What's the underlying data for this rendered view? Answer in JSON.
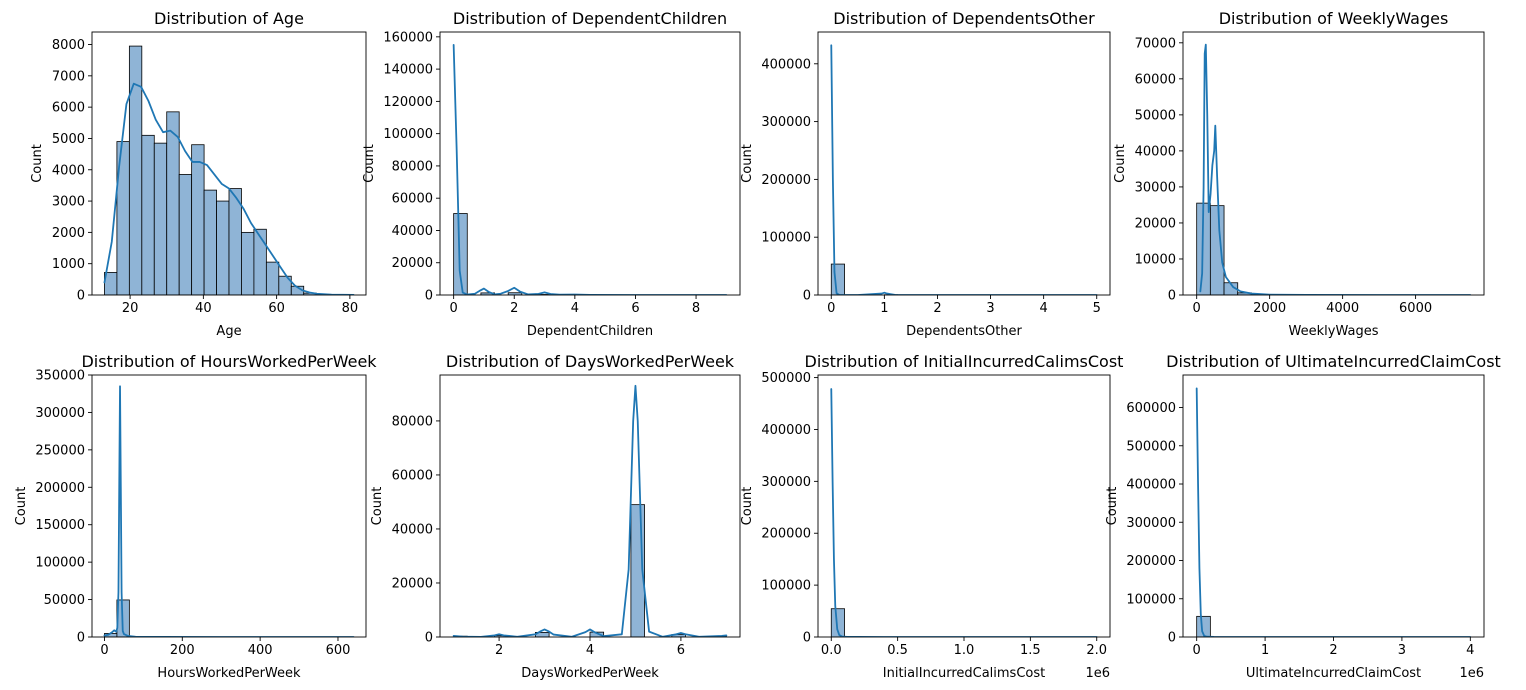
{
  "colors": {
    "bar_fill": "#8fb4d6",
    "bar_edge": "#000000",
    "kde_line": "#1f77b4",
    "axis": "#000000",
    "background": "#ffffff"
  },
  "chart_data": [
    {
      "type": "bar",
      "title": "Distribution of Age",
      "xlabel": "Age",
      "ylabel": "Count",
      "xlim": [
        9.6,
        84.4
      ],
      "ylim": [
        0,
        8400
      ],
      "xticks": [
        20,
        40,
        60,
        80
      ],
      "xtick_labels": [
        "20",
        "40",
        "60",
        "80"
      ],
      "yticks": [
        0,
        1000,
        2000,
        3000,
        4000,
        5000,
        6000,
        7000,
        8000
      ],
      "ytick_labels": [
        "0",
        "1000",
        "2000",
        "3000",
        "4000",
        "5000",
        "6000",
        "7000",
        "8000"
      ],
      "bin_edges": [
        13,
        16.4,
        19.8,
        23.2,
        26.6,
        30,
        33.4,
        36.8,
        40.2,
        43.6,
        47,
        50.4,
        53.8,
        57.2,
        60.6,
        64,
        67.4,
        70.8,
        74.2,
        77.6,
        81
      ],
      "counts": [
        720,
        4900,
        7950,
        5100,
        4850,
        5850,
        3850,
        4800,
        3350,
        3000,
        3400,
        2000,
        2100,
        1050,
        600,
        280,
        60,
        20,
        8,
        4
      ],
      "kde": {
        "x": [
          13,
          15,
          17,
          19,
          21,
          23,
          25,
          27,
          29,
          31,
          33,
          35,
          37,
          39,
          41,
          43,
          45,
          47,
          49,
          51,
          53,
          55,
          57,
          59,
          61,
          63,
          65,
          67,
          69,
          71,
          75,
          81
        ],
        "y": [
          400,
          1700,
          4100,
          6100,
          6750,
          6650,
          6200,
          5600,
          5200,
          5250,
          5050,
          4600,
          4250,
          4250,
          4150,
          3850,
          3550,
          3400,
          3100,
          2750,
          2300,
          1950,
          1600,
          1250,
          900,
          550,
          300,
          150,
          80,
          40,
          10,
          2
        ]
      },
      "x_offset_label": ""
    },
    {
      "type": "bar",
      "title": "Distribution of DependentChildren",
      "xlabel": "DependentChildren",
      "ylabel": "Count",
      "xlim": [
        -0.45,
        9.45
      ],
      "ylim": [
        0,
        163000
      ],
      "xticks": [
        0,
        2,
        4,
        6,
        8
      ],
      "xtick_labels": [
        "0",
        "2",
        "4",
        "6",
        "8"
      ],
      "yticks": [
        0,
        20000,
        40000,
        60000,
        80000,
        100000,
        120000,
        140000,
        160000
      ],
      "ytick_labels": [
        "0",
        "20000",
        "40000",
        "60000",
        "80000",
        "100000",
        "120000",
        "140000",
        "160000"
      ],
      "bin_edges": [
        0,
        0.45,
        0.9,
        1.35,
        1.8,
        2.25,
        2.7,
        3.15,
        3.6,
        4.05,
        4.5,
        4.95,
        5.4,
        5.85,
        6.3,
        6.75,
        7.2,
        7.65,
        8.1,
        8.55,
        9
      ],
      "counts": [
        50500,
        0,
        1300,
        0,
        1400,
        0,
        300,
        0,
        80,
        0,
        20,
        0,
        10,
        0,
        5,
        0,
        3,
        0,
        2,
        2
      ],
      "kde": {
        "x": [
          0,
          0.1,
          0.2,
          0.3,
          0.45,
          0.7,
          0.85,
          1.0,
          1.15,
          1.35,
          1.55,
          1.8,
          2.0,
          2.2,
          2.45,
          2.8,
          3.0,
          3.2,
          3.5,
          4.0,
          4.5,
          6,
          9
        ],
        "y": [
          155000,
          90000,
          15000,
          1500,
          300,
          800,
          2500,
          4000,
          2000,
          400,
          800,
          2500,
          4500,
          2000,
          400,
          700,
          1600,
          600,
          200,
          300,
          100,
          20,
          5
        ]
      },
      "x_offset_label": ""
    },
    {
      "type": "bar",
      "title": "Distribution of DependentsOther",
      "xlabel": "DependentsOther",
      "ylabel": "Count",
      "xlim": [
        -0.25,
        5.25
      ],
      "ylim": [
        0,
        455000
      ],
      "xticks": [
        0,
        1,
        2,
        3,
        4,
        5
      ],
      "xtick_labels": [
        "0",
        "1",
        "2",
        "3",
        "4",
        "5"
      ],
      "yticks": [
        0,
        100000,
        200000,
        300000,
        400000
      ],
      "ytick_labels": [
        "0",
        "100000",
        "200000",
        "300000",
        "400000"
      ],
      "bin_edges": [
        0,
        0.25,
        0.5,
        0.75,
        1,
        1.25,
        1.5,
        1.75,
        2,
        2.25,
        2.5,
        2.75,
        3,
        3.25,
        3.5,
        3.75,
        4,
        4.25,
        4.5,
        4.75,
        5
      ],
      "counts": [
        53500,
        0,
        0,
        0,
        450,
        0,
        0,
        0,
        40,
        0,
        0,
        0,
        8,
        0,
        0,
        0,
        2,
        0,
        0,
        1
      ],
      "kde": {
        "x": [
          0,
          0.03,
          0.06,
          0.1,
          0.15,
          0.5,
          0.95,
          1.0,
          1.05,
          1.2,
          2,
          5
        ],
        "y": [
          432000,
          200000,
          40000,
          3000,
          200,
          50,
          2500,
          4000,
          2500,
          200,
          50,
          5
        ]
      },
      "x_offset_label": ""
    },
    {
      "type": "bar",
      "title": "Distribution of WeeklyWages",
      "xlabel": "WeeklyWages",
      "ylabel": "Count",
      "xlim": [
        -375,
        7875
      ],
      "ylim": [
        0,
        73000
      ],
      "xticks": [
        0,
        2000,
        4000,
        6000
      ],
      "xtick_labels": [
        "0",
        "2000",
        "4000",
        "6000"
      ],
      "yticks": [
        0,
        10000,
        20000,
        30000,
        40000,
        50000,
        60000,
        70000
      ],
      "ytick_labels": [
        "0",
        "10000",
        "20000",
        "30000",
        "40000",
        "50000",
        "60000",
        "70000"
      ],
      "bin_edges": [
        0,
        375,
        750,
        1125,
        1500,
        1875,
        2250,
        2625,
        3000,
        3375,
        3750,
        4125,
        4500,
        4875,
        5250,
        5625,
        6000,
        6375,
        6750,
        7125,
        7500
      ],
      "counts": [
        25500,
        24800,
        3400,
        600,
        150,
        60,
        30,
        10,
        5,
        3,
        2,
        1,
        1,
        0,
        0,
        0,
        0,
        0,
        0,
        0
      ],
      "kde": {
        "x": [
          100,
          150,
          190,
          220,
          250,
          290,
          330,
          380,
          430,
          480,
          510,
          560,
          620,
          700,
          800,
          1000,
          1200,
          1500,
          2000,
          3000,
          5000,
          7500
        ],
        "y": [
          1000,
          6000,
          30000,
          67000,
          69500,
          50000,
          23000,
          28000,
          36000,
          40000,
          47000,
          33000,
          18000,
          9000,
          5000,
          2200,
          1000,
          400,
          100,
          20,
          5,
          1
        ]
      },
      "x_offset_label": ""
    },
    {
      "type": "bar",
      "title": "Distribution of HoursWorkedPerWeek",
      "xlabel": "HoursWorkedPerWeek",
      "ylabel": "Count",
      "xlim": [
        -32,
        672
      ],
      "ylim": [
        0,
        350000
      ],
      "xticks": [
        0,
        200,
        400,
        600
      ],
      "xtick_labels": [
        "0",
        "200",
        "400",
        "600"
      ],
      "yticks": [
        0,
        50000,
        100000,
        150000,
        200000,
        250000,
        300000,
        350000
      ],
      "ytick_labels": [
        "0",
        "50000",
        "100000",
        "150000",
        "200000",
        "250000",
        "300000",
        "350000"
      ],
      "bin_edges": [
        0,
        32,
        64,
        96,
        128,
        160,
        192,
        224,
        256,
        288,
        320,
        352,
        384,
        416,
        448,
        480,
        512,
        544,
        576,
        608,
        640
      ],
      "counts": [
        4700,
        49500,
        200,
        50,
        20,
        10,
        5,
        2,
        1,
        1,
        0,
        0,
        0,
        0,
        0,
        0,
        0,
        0,
        0,
        0,
        0
      ],
      "kde": {
        "x": [
          0,
          10,
          20,
          25,
          30,
          33,
          36,
          38,
          40,
          42,
          44,
          47,
          50,
          60,
          80,
          150,
          300,
          640
        ],
        "y": [
          2000,
          3000,
          6500,
          9000,
          7000,
          12000,
          60000,
          200000,
          335000,
          200000,
          60000,
          8000,
          4000,
          1500,
          300,
          50,
          10,
          2
        ]
      },
      "x_offset_label": ""
    },
    {
      "type": "bar",
      "title": "Distribution of DaysWorkedPerWeek",
      "xlabel": "DaysWorkedPerWeek",
      "ylabel": "Count",
      "xlim": [
        0.7,
        7.3
      ],
      "ylim": [
        0,
        97000
      ],
      "xticks": [
        2,
        4,
        6
      ],
      "xtick_labels": [
        "2",
        "4",
        "6"
      ],
      "yticks": [
        0,
        20000,
        40000,
        60000,
        80000
      ],
      "ytick_labels": [
        "0",
        "20000",
        "40000",
        "60000",
        "80000"
      ],
      "bin_edges": [
        1,
        1.3,
        1.6,
        1.9,
        2.2,
        2.5,
        2.8,
        3.1,
        3.4,
        3.7,
        4.0,
        4.3,
        4.6,
        4.9,
        5.2,
        5.5,
        5.8,
        6.1,
        6.4,
        6.7,
        7.0
      ],
      "counts": [
        300,
        0,
        0,
        500,
        0,
        0,
        1700,
        0,
        0,
        0,
        1800,
        0,
        0,
        49000,
        0,
        0,
        900,
        0,
        0,
        400
      ],
      "kde": {
        "x": [
          1,
          1.2,
          1.6,
          1.9,
          2.0,
          2.1,
          2.4,
          2.8,
          2.9,
          3.0,
          3.1,
          3.2,
          3.6,
          3.9,
          4.0,
          4.1,
          4.3,
          4.7,
          4.85,
          4.95,
          5.0,
          5.05,
          5.15,
          5.3,
          5.6,
          5.9,
          6.0,
          6.1,
          6.4,
          6.9,
          7.0
        ],
        "y": [
          400,
          150,
          50,
          600,
          1000,
          600,
          80,
          1000,
          2000,
          2800,
          2000,
          900,
          80,
          1800,
          2800,
          1800,
          300,
          1000,
          25000,
          80000,
          93000,
          80000,
          25000,
          2000,
          80,
          1000,
          1500,
          1000,
          80,
          400,
          600
        ]
      },
      "x_offset_label": ""
    },
    {
      "type": "bar",
      "title": "Distribution of InitialIncurredCalimsCost",
      "xlabel": "InitialIncurredCalimsCost",
      "ylabel": "Count",
      "xlim": [
        -100000,
        2100000
      ],
      "ylim": [
        0,
        505000
      ],
      "xticks": [
        0,
        500000,
        1000000,
        1500000,
        2000000
      ],
      "xtick_labels": [
        "0.0",
        "0.5",
        "1.0",
        "1.5",
        "2.0"
      ],
      "yticks": [
        0,
        100000,
        200000,
        300000,
        400000,
        500000
      ],
      "ytick_labels": [
        "0",
        "100000",
        "200000",
        "300000",
        "400000",
        "500000"
      ],
      "bin_edges": [
        0,
        100000,
        200000,
        300000,
        400000,
        500000,
        600000,
        700000,
        800000,
        900000,
        1000000,
        1100000,
        1200000,
        1300000,
        1400000,
        1500000,
        1600000,
        1700000,
        1800000,
        1900000,
        2000000
      ],
      "counts": [
        54500,
        100,
        30,
        10,
        5,
        2,
        1,
        1,
        0,
        0,
        0,
        0,
        0,
        0,
        0,
        0,
        0,
        0,
        0,
        0
      ],
      "kde": {
        "x": [
          0,
          10000,
          20000,
          30000,
          45000,
          60000,
          80000,
          120000,
          200000,
          400000,
          1000000,
          2000000
        ],
        "y": [
          478000,
          300000,
          150000,
          60000,
          15000,
          4000,
          1000,
          300,
          80,
          20,
          5,
          1
        ]
      },
      "x_offset_label": "1e6"
    },
    {
      "type": "bar",
      "title": "Distribution of UltimateIncurredClaimCost",
      "xlabel": "UltimateIncurredClaimCost",
      "ylabel": "Count",
      "xlim": [
        -200000,
        4200000
      ],
      "ylim": [
        0,
        685000
      ],
      "xticks": [
        0,
        1000000,
        2000000,
        3000000,
        4000000
      ],
      "xtick_labels": [
        "0",
        "1",
        "2",
        "3",
        "4"
      ],
      "yticks": [
        0,
        100000,
        200000,
        300000,
        400000,
        500000,
        600000
      ],
      "ytick_labels": [
        "0",
        "100000",
        "200000",
        "300000",
        "400000",
        "500000",
        "600000"
      ],
      "bin_edges": [
        0,
        200000,
        400000,
        600000,
        800000,
        1000000,
        1200000,
        1400000,
        1600000,
        1800000,
        2000000,
        2200000,
        2400000,
        2600000,
        2800000,
        3000000,
        3200000,
        3400000,
        3600000,
        3800000,
        4000000
      ],
      "counts": [
        54000,
        300,
        80,
        20,
        10,
        5,
        2,
        1,
        1,
        0,
        0,
        0,
        0,
        0,
        0,
        0,
        0,
        0,
        0,
        0
      ],
      "kde": {
        "x": [
          0,
          20000,
          40000,
          60000,
          80000,
          110000,
          150000,
          250000,
          500000,
          1000000,
          2000000,
          4000000
        ],
        "y": [
          650000,
          400000,
          180000,
          60000,
          15000,
          3000,
          800,
          200,
          50,
          15,
          5,
          1
        ]
      },
      "x_offset_label": "1e6"
    }
  ]
}
